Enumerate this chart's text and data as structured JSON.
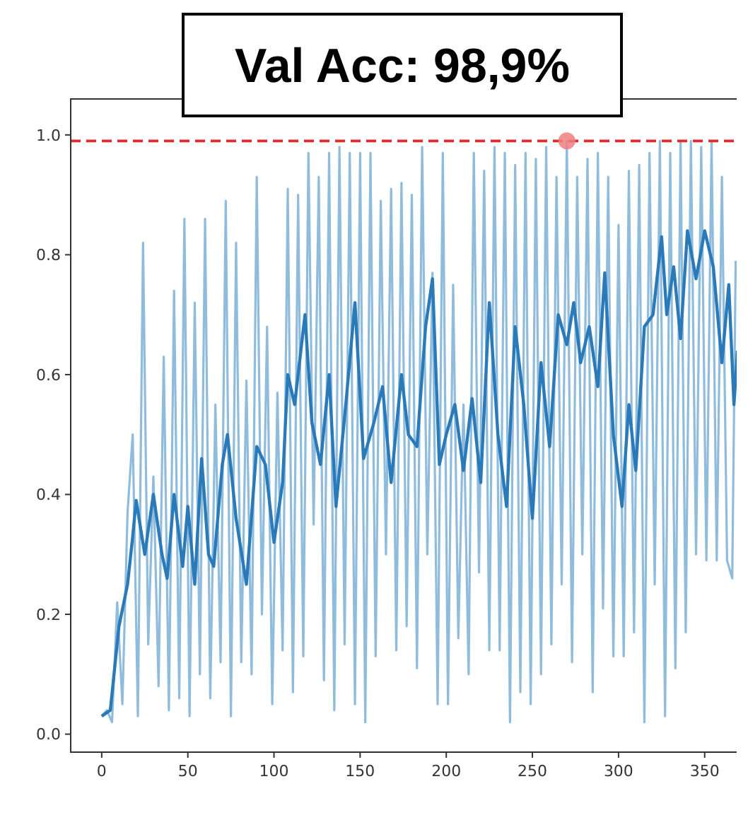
{
  "chart_data": {
    "type": "line",
    "title": "Val Acc: 98,9%",
    "xlim": [
      -18,
      385
    ],
    "xticks": [
      0,
      50,
      100,
      150,
      200,
      250,
      300,
      350
    ],
    "ylim": [
      -0.03,
      1.06
    ],
    "yticks": [
      {
        "value": 0,
        "label": "0.0"
      },
      0.2,
      0.4,
      0.6,
      0.8,
      {
        "value": 1,
        "label": "1.0"
      }
    ],
    "grid": false,
    "marker": "none",
    "line_style": "solid",
    "series": [
      {
        "color": "#8fbcdc",
        "x": [
          0,
          3,
          6,
          9,
          12,
          15,
          18,
          21,
          24,
          27,
          30,
          33,
          36,
          39,
          42,
          45,
          48,
          51,
          54,
          57,
          60,
          63,
          66,
          69,
          72,
          75,
          78,
          81,
          84,
          87,
          90,
          93,
          96,
          99,
          102,
          105,
          108,
          111,
          114,
          117,
          120,
          123,
          126,
          129,
          132,
          135,
          138,
          141,
          144,
          147,
          150,
          153,
          156,
          159,
          162,
          165,
          168,
          171,
          174,
          177,
          180,
          183,
          186,
          189,
          192,
          195,
          198,
          201,
          204,
          207,
          210,
          213,
          216,
          219,
          222,
          225,
          228,
          231,
          234,
          237,
          240,
          243,
          246,
          249,
          252,
          255,
          258,
          261,
          264,
          267,
          270,
          273,
          276,
          279,
          282,
          285,
          288,
          291,
          294,
          297,
          300,
          303,
          306,
          309,
          312,
          315,
          318,
          321,
          324,
          327,
          330,
          333,
          336,
          339,
          342,
          345,
          348,
          351,
          354,
          357,
          360,
          363,
          366,
          368
        ],
        "values": [
          0.03,
          0.04,
          0.02,
          0.22,
          0.05,
          0.37,
          0.5,
          0.03,
          0.82,
          0.15,
          0.43,
          0.08,
          0.63,
          0.04,
          0.74,
          0.06,
          0.86,
          0.03,
          0.72,
          0.1,
          0.86,
          0.06,
          0.55,
          0.12,
          0.89,
          0.03,
          0.82,
          0.12,
          0.59,
          0.1,
          0.93,
          0.2,
          0.68,
          0.05,
          0.57,
          0.14,
          0.91,
          0.07,
          0.9,
          0.13,
          0.97,
          0.35,
          0.93,
          0.09,
          0.97,
          0.04,
          0.98,
          0.15,
          0.97,
          0.05,
          0.97,
          0.02,
          0.97,
          0.13,
          0.89,
          0.3,
          0.91,
          0.14,
          0.92,
          0.18,
          0.9,
          0.11,
          0.98,
          0.3,
          0.77,
          0.05,
          0.97,
          0.05,
          0.75,
          0.16,
          0.55,
          0.1,
          0.97,
          0.27,
          0.94,
          0.14,
          0.98,
          0.14,
          0.97,
          0.02,
          0.95,
          0.07,
          0.97,
          0.05,
          0.96,
          0.1,
          0.98,
          0.15,
          0.93,
          0.25,
          0.99,
          0.12,
          0.93,
          0.3,
          0.96,
          0.07,
          0.97,
          0.21,
          0.93,
          0.13,
          0.85,
          0.13,
          0.94,
          0.17,
          0.95,
          0.02,
          0.97,
          0.25,
          0.99,
          0.03,
          0.97,
          0.11,
          0.99,
          0.17,
          0.99,
          0.3,
          0.98,
          0.29,
          0.99,
          0.29,
          0.93,
          0.29,
          0.26,
          0.79
        ]
      },
      {
        "color": "#2a7ab9",
        "x": [
          0,
          5,
          10,
          15,
          18,
          20,
          25,
          30,
          35,
          38,
          42,
          47,
          50,
          54,
          58,
          62,
          65,
          70,
          73,
          78,
          84,
          90,
          95,
          100,
          105,
          108,
          112,
          118,
          122,
          127,
          132,
          136,
          142,
          147,
          152,
          158,
          163,
          168,
          174,
          178,
          183,
          188,
          192,
          196,
          200,
          205,
          210,
          215,
          220,
          225,
          230,
          235,
          240,
          245,
          250,
          255,
          260,
          265,
          270,
          274,
          278,
          283,
          288,
          292,
          297,
          302,
          306,
          310,
          315,
          320,
          325,
          328,
          332,
          336,
          340,
          345,
          350,
          355,
          360,
          364,
          367,
          369
        ],
        "values": [
          0.03,
          0.04,
          0.18,
          0.25,
          0.33,
          0.39,
          0.3,
          0.4,
          0.3,
          0.26,
          0.4,
          0.28,
          0.38,
          0.25,
          0.46,
          0.3,
          0.28,
          0.45,
          0.5,
          0.36,
          0.25,
          0.48,
          0.45,
          0.32,
          0.42,
          0.6,
          0.55,
          0.7,
          0.52,
          0.45,
          0.6,
          0.38,
          0.56,
          0.72,
          0.46,
          0.52,
          0.58,
          0.42,
          0.6,
          0.5,
          0.48,
          0.68,
          0.76,
          0.45,
          0.5,
          0.55,
          0.44,
          0.56,
          0.42,
          0.72,
          0.5,
          0.38,
          0.68,
          0.55,
          0.36,
          0.62,
          0.48,
          0.7,
          0.65,
          0.72,
          0.62,
          0.68,
          0.58,
          0.77,
          0.5,
          0.38,
          0.55,
          0.44,
          0.68,
          0.7,
          0.83,
          0.7,
          0.78,
          0.66,
          0.84,
          0.76,
          0.84,
          0.78,
          0.62,
          0.75,
          0.55,
          0.64
        ]
      },
      {
        "type": "scatter",
        "marker": "circle",
        "color": "#f08080",
        "x": [
          270
        ],
        "values": [
          0.99
        ]
      }
    ],
    "ref_lines": [
      {
        "axis": "y",
        "value": 0.99,
        "color": "#e8282c",
        "line_style": "dashed"
      }
    ]
  }
}
